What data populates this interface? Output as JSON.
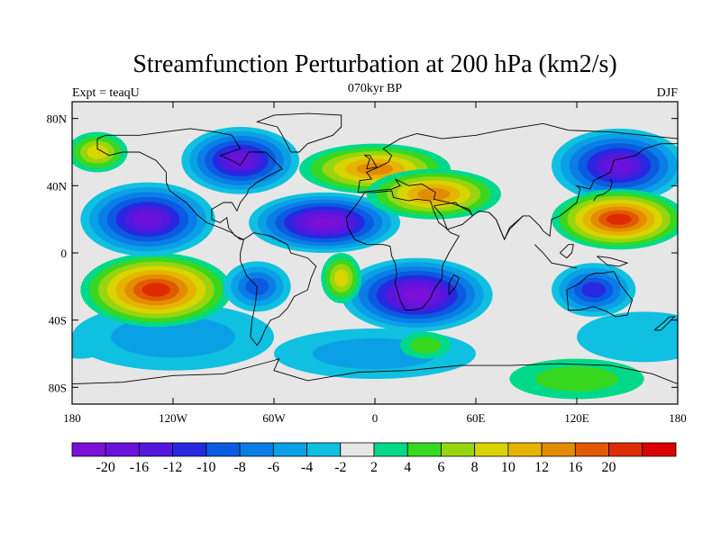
{
  "title": "Streamfunction Perturbation at 200 hPa (km2/s)",
  "left_label": "Expt = teaqU",
  "center_label": "070kyr BP",
  "right_label": "DJF",
  "map": {
    "projection": "cylindrical-equidistant",
    "lon_range": [
      -180,
      180
    ],
    "lat_range": [
      -90,
      90
    ],
    "x_ticks": [
      {
        "lon": -180,
        "label": "180"
      },
      {
        "lon": -120,
        "label": "120W"
      },
      {
        "lon": -60,
        "label": "60W"
      },
      {
        "lon": 0,
        "label": "0"
      },
      {
        "lon": 60,
        "label": "60E"
      },
      {
        "lon": 120,
        "label": "120E"
      },
      {
        "lon": 180,
        "label": "180"
      }
    ],
    "y_ticks": [
      {
        "lat": 80,
        "label": "80N"
      },
      {
        "lat": 40,
        "label": "40N"
      },
      {
        "lat": 0,
        "label": "0"
      },
      {
        "lat": -40,
        "label": "40S"
      },
      {
        "lat": -80,
        "label": "80S"
      }
    ],
    "anomalies": [
      {
        "lon": -135,
        "lat": 20,
        "value": -20,
        "rlon": 40,
        "rlat": 22
      },
      {
        "lon": -80,
        "lat": 55,
        "value": -20,
        "rlon": 35,
        "rlat": 20
      },
      {
        "lon": -30,
        "lat": 18,
        "value": -21,
        "rlon": 45,
        "rlat": 18
      },
      {
        "lon": 25,
        "lat": -25,
        "value": -21,
        "rlon": 45,
        "rlat": 22
      },
      {
        "lon": -70,
        "lat": -20,
        "value": -10,
        "rlon": 20,
        "rlat": 15
      },
      {
        "lon": 130,
        "lat": -22,
        "value": -12,
        "rlon": 25,
        "rlat": 16
      },
      {
        "lon": 145,
        "lat": 52,
        "value": -20,
        "rlon": 40,
        "rlat": 22
      },
      {
        "lon": -130,
        "lat": -22,
        "value": 22,
        "rlon": 45,
        "rlat": 22
      },
      {
        "lon": 0,
        "lat": 50,
        "value": 15,
        "rlon": 45,
        "rlat": 15
      },
      {
        "lon": 35,
        "lat": 35,
        "value": 12,
        "rlon": 40,
        "rlat": 15
      },
      {
        "lon": 145,
        "lat": 20,
        "value": 22,
        "rlon": 40,
        "rlat": 18
      },
      {
        "lon": -20,
        "lat": -15,
        "value": 8,
        "rlon": 12,
        "rlat": 15
      },
      {
        "lon": -165,
        "lat": 60,
        "value": 8,
        "rlon": 18,
        "rlat": 12
      },
      {
        "lon": 120,
        "lat": -75,
        "value": 5,
        "rlon": 40,
        "rlat": 12
      },
      {
        "lon": 30,
        "lat": -55,
        "value": 4,
        "rlon": 15,
        "rlat": 8
      },
      {
        "lon": -120,
        "lat": -50,
        "value": -6,
        "rlon": 60,
        "rlat": 20
      },
      {
        "lon": 0,
        "lat": -60,
        "value": -6,
        "rlon": 60,
        "rlat": 15
      },
      {
        "lon": 160,
        "lat": -50,
        "value": -4,
        "rlon": 40,
        "rlat": 15
      },
      {
        "lon": -175,
        "lat": -55,
        "value": -4,
        "rlon": 15,
        "rlat": 8
      }
    ]
  },
  "colorbar": {
    "colors": [
      "#7a10d8",
      "#6a12dc",
      "#5418dc",
      "#2828e0",
      "#0a5be0",
      "#0a7ee6",
      "#0aa0e6",
      "#10c0e0",
      "#e6e6e6",
      "#00d98a",
      "#38d820",
      "#98d410",
      "#d8d400",
      "#e4b400",
      "#e48c00",
      "#e25a00",
      "#de2c00",
      "#dc0000"
    ],
    "labels": [
      "-20",
      "-16",
      "-12",
      "-10",
      "-8",
      "-6",
      "-4",
      "-2",
      "2",
      "4",
      "6",
      "8",
      "10",
      "12",
      "16",
      "20"
    ]
  }
}
